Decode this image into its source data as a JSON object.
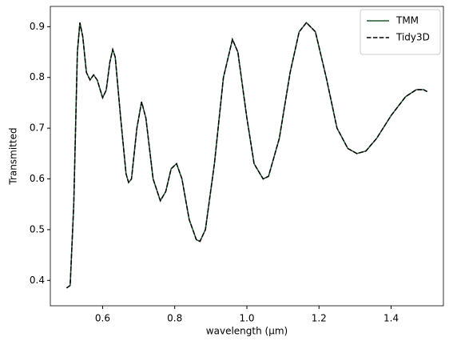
{
  "chart_data": {
    "type": "line",
    "xlabel": "wavelength (μm)",
    "ylabel": "Transmitted",
    "x": [
      0.5,
      0.51,
      0.52,
      0.53,
      0.537,
      0.545,
      0.555,
      0.565,
      0.575,
      0.585,
      0.6,
      0.61,
      0.62,
      0.628,
      0.635,
      0.65,
      0.665,
      0.672,
      0.68,
      0.695,
      0.708,
      0.72,
      0.74,
      0.76,
      0.775,
      0.79,
      0.805,
      0.82,
      0.84,
      0.86,
      0.87,
      0.885,
      0.91,
      0.935,
      0.96,
      0.975,
      1.0,
      1.02,
      1.045,
      1.06,
      1.09,
      1.12,
      1.145,
      1.165,
      1.19,
      1.22,
      1.25,
      1.28,
      1.305,
      1.33,
      1.36,
      1.4,
      1.44,
      1.47,
      1.49,
      1.5
    ],
    "series": [
      {
        "name": "TMM",
        "color": "#1f5a2e",
        "dash": false,
        "values": [
          0.385,
          0.39,
          0.55,
          0.85,
          0.908,
          0.88,
          0.81,
          0.795,
          0.805,
          0.795,
          0.76,
          0.775,
          0.83,
          0.855,
          0.84,
          0.72,
          0.61,
          0.593,
          0.6,
          0.7,
          0.752,
          0.72,
          0.6,
          0.557,
          0.575,
          0.62,
          0.63,
          0.6,
          0.52,
          0.48,
          0.477,
          0.5,
          0.63,
          0.8,
          0.875,
          0.85,
          0.72,
          0.63,
          0.6,
          0.605,
          0.68,
          0.81,
          0.89,
          0.908,
          0.89,
          0.8,
          0.7,
          0.66,
          0.65,
          0.655,
          0.68,
          0.725,
          0.762,
          0.776,
          0.776,
          0.772
        ]
      },
      {
        "name": "Tidy3D",
        "color": "#000000",
        "dash": true,
        "values": [
          0.385,
          0.39,
          0.55,
          0.85,
          0.908,
          0.88,
          0.81,
          0.795,
          0.805,
          0.795,
          0.76,
          0.775,
          0.83,
          0.855,
          0.84,
          0.72,
          0.61,
          0.593,
          0.6,
          0.7,
          0.752,
          0.72,
          0.6,
          0.557,
          0.575,
          0.62,
          0.63,
          0.6,
          0.52,
          0.48,
          0.477,
          0.5,
          0.63,
          0.8,
          0.875,
          0.85,
          0.72,
          0.63,
          0.6,
          0.605,
          0.68,
          0.81,
          0.89,
          0.908,
          0.89,
          0.8,
          0.7,
          0.66,
          0.65,
          0.655,
          0.68,
          0.725,
          0.762,
          0.776,
          0.776,
          0.772
        ]
      }
    ],
    "xlim": [
      0.455,
      1.545
    ],
    "ylim": [
      0.35,
      0.94
    ],
    "xticks": [
      0.6,
      0.8,
      {
        "value": 1,
        "label": "1.0"
      },
      1.2,
      1.4
    ],
    "yticks": [
      0.4,
      0.5,
      0.6,
      0.7,
      0.8,
      0.9
    ],
    "legend": "upper right"
  }
}
